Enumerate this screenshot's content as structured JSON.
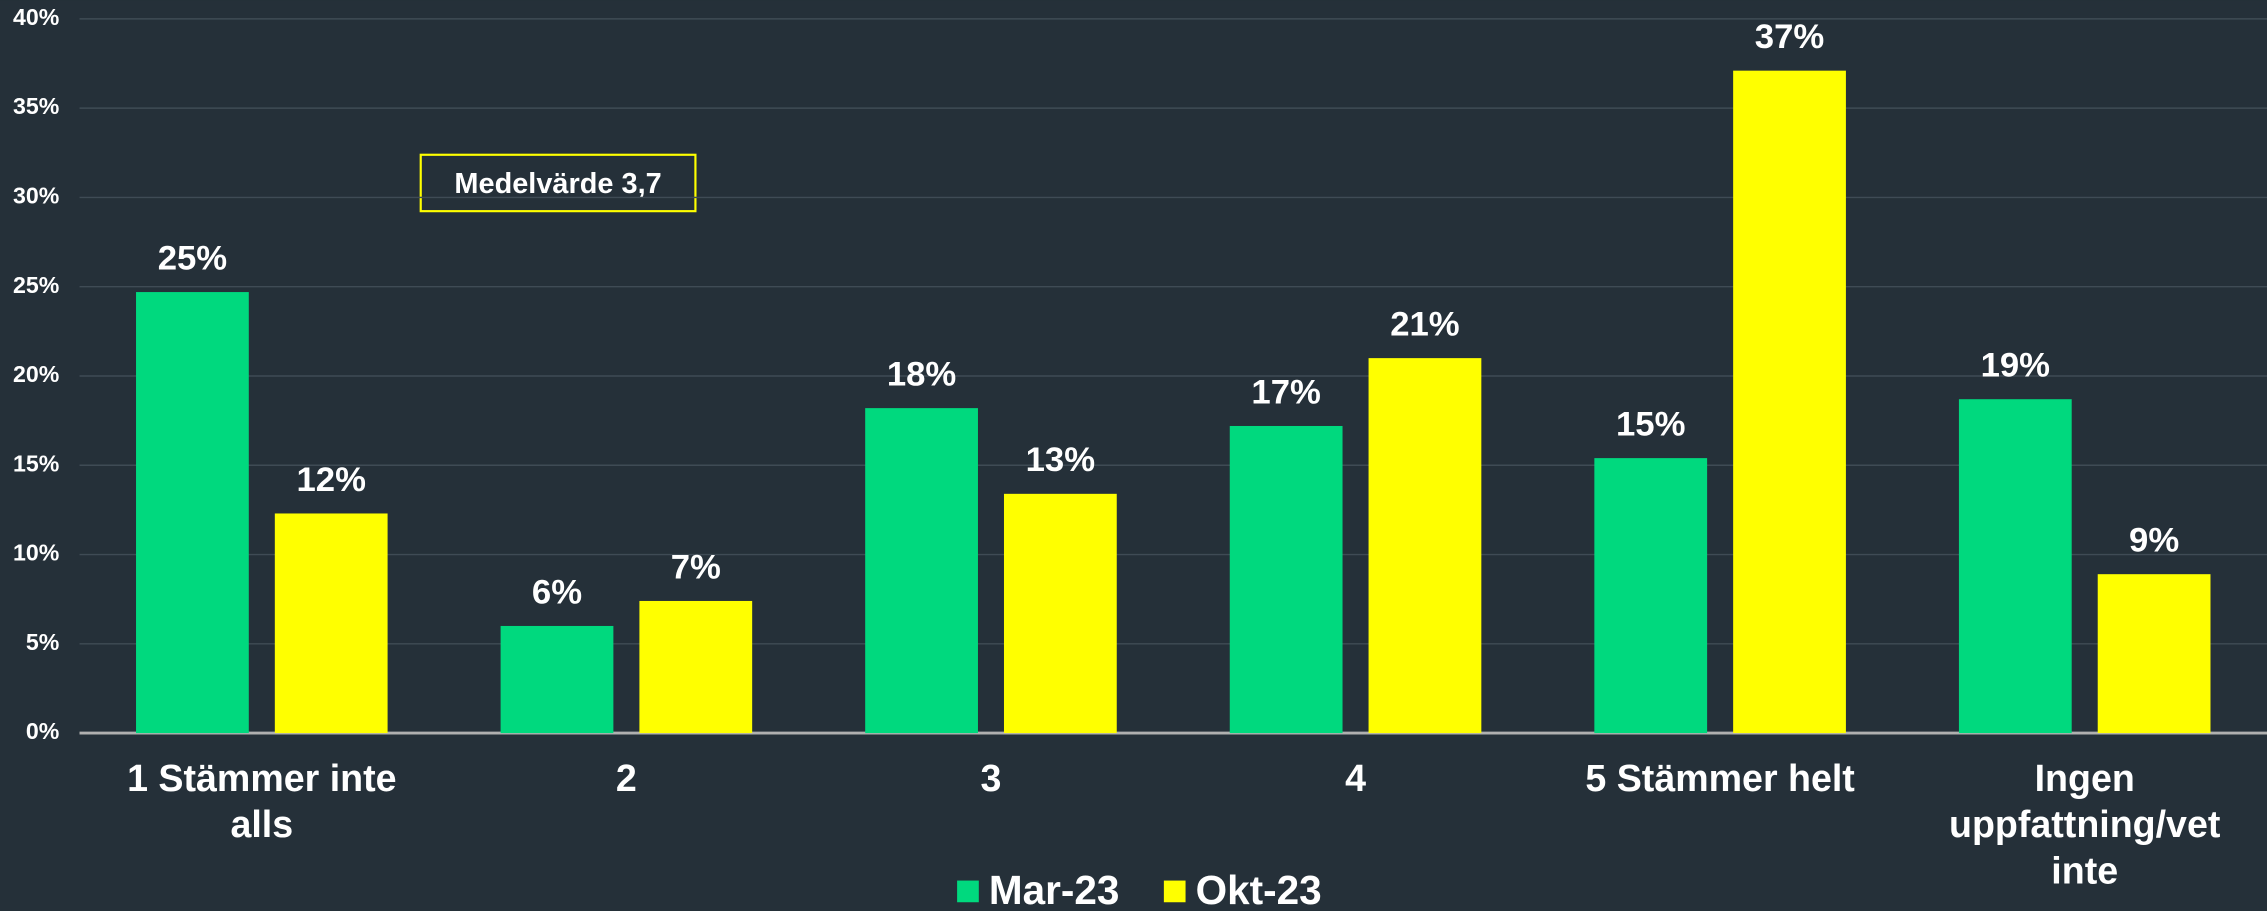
{
  "chart_data": {
    "type": "bar",
    "categories": [
      "1 Stämmer inte alls",
      "2",
      "3",
      "4",
      "5 Stämmer helt",
      "Ingen uppfattning/vet inte"
    ],
    "series": [
      {
        "name": "Mar-23",
        "color": "#00d97e",
        "values": [
          24.7,
          6.0,
          18.2,
          17.2,
          15.4,
          18.7
        ],
        "value_labels": [
          "25%",
          "6%",
          "18%",
          "17%",
          "15%",
          "19%"
        ]
      },
      {
        "name": "Okt-23",
        "color": "#ffff00",
        "values": [
          12.3,
          7.4,
          13.4,
          21.0,
          37.1,
          8.9
        ],
        "value_labels": [
          "12%",
          "7%",
          "13%",
          "21%",
          "37%",
          "9%"
        ]
      }
    ],
    "ylim": [
      0,
      40
    ],
    "yticks": [
      {
        "value": 0,
        "label": "0%"
      },
      {
        "value": 5,
        "label": "5%"
      },
      {
        "value": 10,
        "label": "10%"
      },
      {
        "value": 15,
        "label": "15%"
      },
      {
        "value": 20,
        "label": "20%"
      },
      {
        "value": 25,
        "label": "25%"
      },
      {
        "value": 30,
        "label": "30%"
      },
      {
        "value": 35,
        "label": "35%"
      },
      {
        "value": 40,
        "label": "40%"
      }
    ],
    "grid": true,
    "legend": "bottom",
    "annotation": "Medelvärde 3,7"
  }
}
